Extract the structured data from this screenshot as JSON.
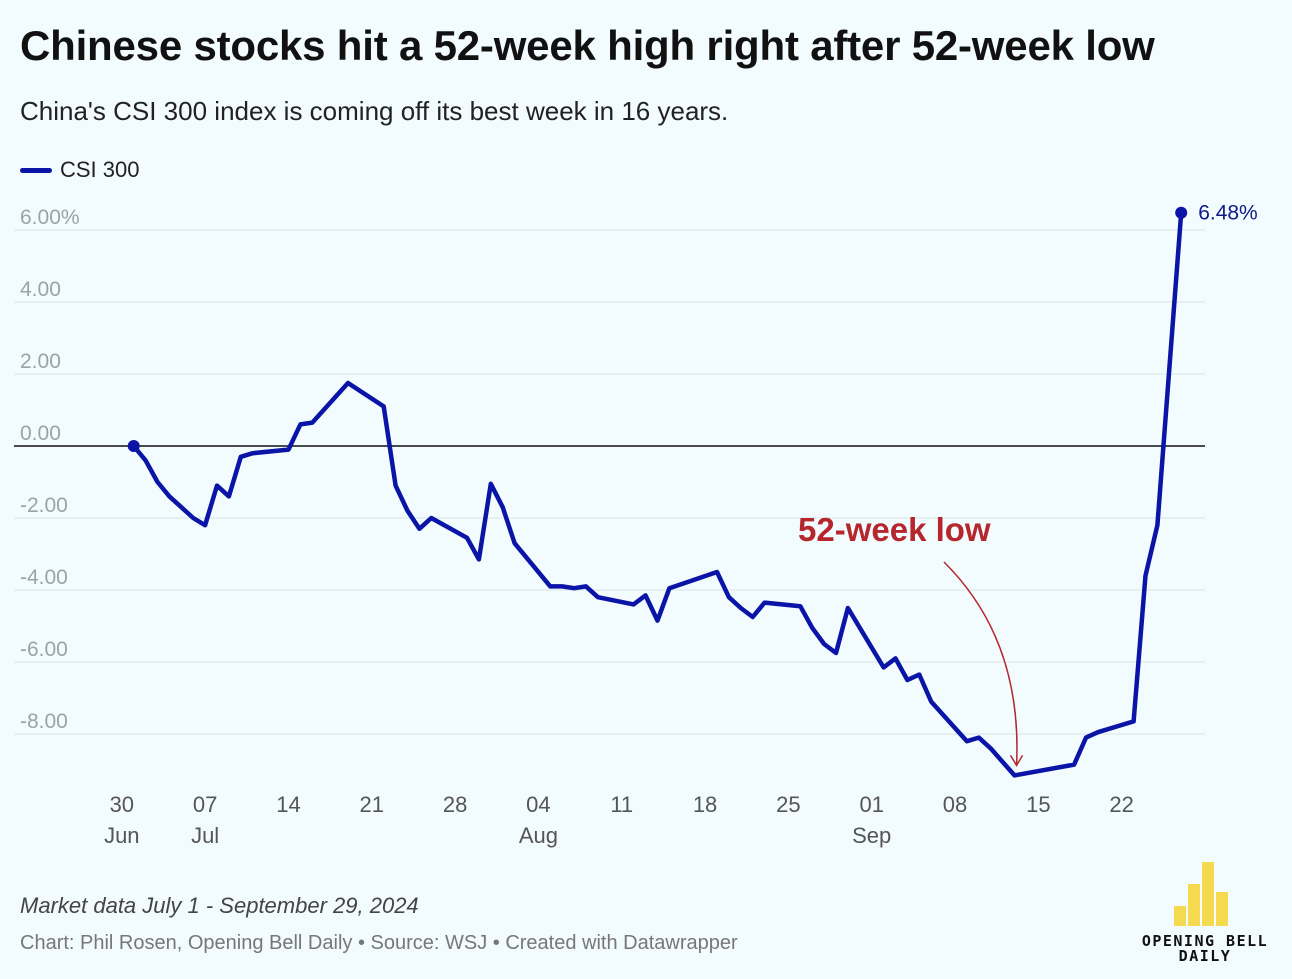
{
  "header": {
    "title": "Chinese stocks hit a 52-week high right after 52-week low",
    "subtitle": "China's CSI 300 index is coming off its best week in 16 years."
  },
  "legend": {
    "label": "CSI 300"
  },
  "footer": {
    "note": "Market data July 1 - September 29, 2024",
    "credit": "Chart: Phil Rosen, Opening Bell Daily • Source: WSJ • Created with Datawrapper"
  },
  "logo": {
    "line1": "OPENING BELL",
    "line2": "DAILY"
  },
  "chart_data": {
    "type": "line",
    "title": "Chinese stocks hit a 52-week high right after 52-week low",
    "subtitle": "China's CSI 300 index is coming off its best week in 16 years.",
    "xlabel": "",
    "ylabel": "",
    "xlim": [
      "2024-06-28",
      "2024-09-29"
    ],
    "ylim": [
      -9.5,
      6.8
    ],
    "y_ticks": [
      6,
      4,
      2,
      0,
      -2,
      -4,
      -6,
      -8
    ],
    "y_tick_labels": [
      "6.00%",
      "4.00",
      "2.00",
      "0.00",
      "-2.00",
      "-4.00",
      "-6.00",
      "-8.00"
    ],
    "x_ticks": [
      {
        "date": "2024-06-30",
        "day": "30",
        "month": "Jun"
      },
      {
        "date": "2024-07-07",
        "day": "07",
        "month": "Jul"
      },
      {
        "date": "2024-07-14",
        "day": "14",
        "month": ""
      },
      {
        "date": "2024-07-21",
        "day": "21",
        "month": ""
      },
      {
        "date": "2024-07-28",
        "day": "28",
        "month": ""
      },
      {
        "date": "2024-08-04",
        "day": "04",
        "month": "Aug"
      },
      {
        "date": "2024-08-11",
        "day": "11",
        "month": ""
      },
      {
        "date": "2024-08-18",
        "day": "18",
        "month": ""
      },
      {
        "date": "2024-08-25",
        "day": "25",
        "month": ""
      },
      {
        "date": "2024-09-01",
        "day": "01",
        "month": "Sep"
      },
      {
        "date": "2024-09-08",
        "day": "08",
        "month": ""
      },
      {
        "date": "2024-09-15",
        "day": "15",
        "month": ""
      },
      {
        "date": "2024-09-22",
        "day": "22",
        "month": ""
      }
    ],
    "grid": true,
    "legend_position": "top-left",
    "series": [
      {
        "name": "CSI 300",
        "color": "#0a14a6",
        "points": [
          [
            "2024-07-01",
            0.0
          ],
          [
            "2024-07-02",
            -0.4
          ],
          [
            "2024-07-03",
            -1.0
          ],
          [
            "2024-07-04",
            -1.4
          ],
          [
            "2024-07-05",
            -1.7
          ],
          [
            "2024-07-06",
            -2.0
          ],
          [
            "2024-07-07",
            -2.2
          ],
          [
            "2024-07-08",
            -1.1
          ],
          [
            "2024-07-09",
            -1.4
          ],
          [
            "2024-07-10",
            -0.3
          ],
          [
            "2024-07-11",
            -0.2
          ],
          [
            "2024-07-14",
            -0.1
          ],
          [
            "2024-07-15",
            0.6
          ],
          [
            "2024-07-16",
            0.65
          ],
          [
            "2024-07-19",
            1.75
          ],
          [
            "2024-07-22",
            1.1
          ],
          [
            "2024-07-23",
            -1.1
          ],
          [
            "2024-07-24",
            -1.8
          ],
          [
            "2024-07-25",
            -2.3
          ],
          [
            "2024-07-26",
            -2.0
          ],
          [
            "2024-07-29",
            -2.55
          ],
          [
            "2024-07-30",
            -3.15
          ],
          [
            "2024-07-31",
            -1.05
          ],
          [
            "2024-08-01",
            -1.7
          ],
          [
            "2024-08-02",
            -2.7
          ],
          [
            "2024-08-05",
            -3.9
          ],
          [
            "2024-08-06",
            -3.9
          ],
          [
            "2024-08-07",
            -3.95
          ],
          [
            "2024-08-08",
            -3.9
          ],
          [
            "2024-08-09",
            -4.2
          ],
          [
            "2024-08-12",
            -4.4
          ],
          [
            "2024-08-13",
            -4.15
          ],
          [
            "2024-08-14",
            -4.85
          ],
          [
            "2024-08-15",
            -3.95
          ],
          [
            "2024-08-19",
            -3.5
          ],
          [
            "2024-08-20",
            -4.2
          ],
          [
            "2024-08-21",
            -4.5
          ],
          [
            "2024-08-22",
            -4.75
          ],
          [
            "2024-08-23",
            -4.35
          ],
          [
            "2024-08-26",
            -4.45
          ],
          [
            "2024-08-27",
            -5.05
          ],
          [
            "2024-08-28",
            -5.5
          ],
          [
            "2024-08-29",
            -5.75
          ],
          [
            "2024-08-30",
            -4.5
          ],
          [
            "2024-09-02",
            -6.15
          ],
          [
            "2024-09-03",
            -5.9
          ],
          [
            "2024-09-04",
            -6.5
          ],
          [
            "2024-09-05",
            -6.35
          ],
          [
            "2024-09-06",
            -7.1
          ],
          [
            "2024-09-09",
            -8.2
          ],
          [
            "2024-09-10",
            -8.1
          ],
          [
            "2024-09-11",
            -8.4
          ],
          [
            "2024-09-13",
            -9.15
          ],
          [
            "2024-09-18",
            -8.85
          ],
          [
            "2024-09-19",
            -8.1
          ],
          [
            "2024-09-20",
            -7.95
          ],
          [
            "2024-09-23",
            -7.65
          ],
          [
            "2024-09-24",
            -3.6
          ],
          [
            "2024-09-25",
            -2.2
          ],
          [
            "2024-09-27",
            6.48
          ]
        ]
      }
    ],
    "end_label": "6.48%",
    "annotations": [
      {
        "text": "52-week low",
        "date": "2024-09-13",
        "value": -9.15,
        "color": "#b5262d"
      }
    ]
  }
}
